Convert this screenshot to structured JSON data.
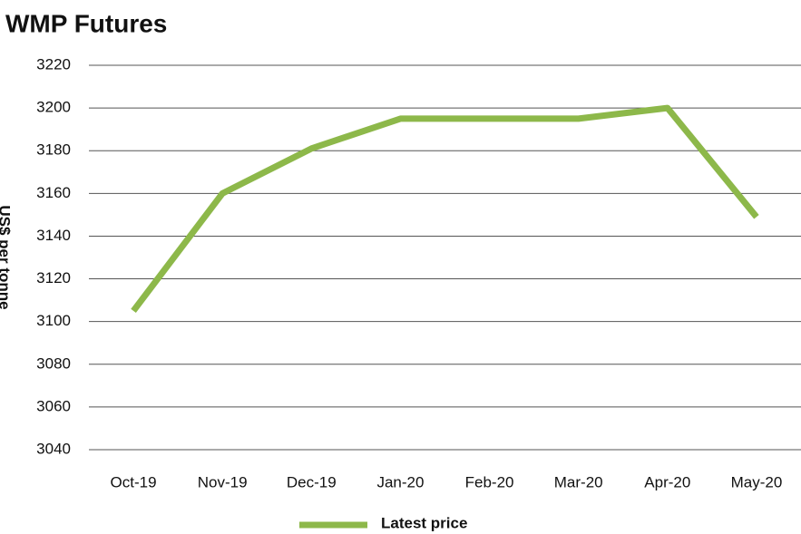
{
  "chart_data": {
    "type": "line",
    "title": "WMP Futures",
    "y_label": "US$ per tonne",
    "categories": [
      "Oct-19",
      "Nov-19",
      "Dec-19",
      "Jan-20",
      "Feb-20",
      "Mar-20",
      "Apr-20",
      "May-20"
    ],
    "series": [
      {
        "name": "Latest price",
        "color": "#8db84a",
        "values": [
          3105,
          3160,
          3181,
          3195,
          3195,
          3195,
          3200,
          3149
        ]
      }
    ],
    "ylim": [
      3040,
      3220
    ],
    "yticks": [
      3040,
      3060,
      3080,
      3100,
      3120,
      3140,
      3160,
      3180,
      3200,
      3220
    ],
    "grid": true,
    "legend": "bottom"
  }
}
